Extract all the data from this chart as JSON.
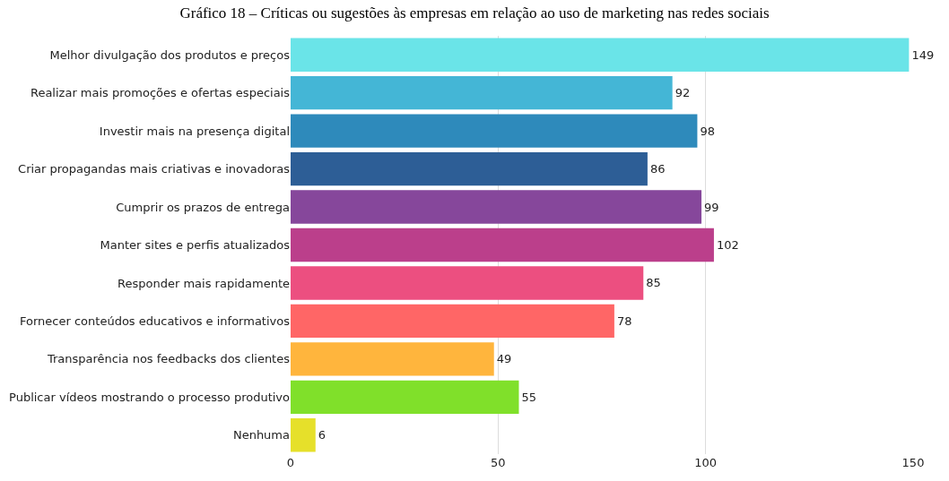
{
  "chart_data": {
    "type": "bar",
    "orientation": "horizontal",
    "title": "Gráfico 18 – Críticas ou sugestões às empresas em relação ao uso de marketing nas redes sociais",
    "categories": [
      "Melhor divulgação dos produtos e preços",
      "Realizar mais promoções e ofertas especiais",
      "Investir mais na presença digital",
      "Criar propagandas mais criativas e inovadoras",
      "Cumprir os prazos de entrega",
      "Manter sites e perfis atualizados",
      "Responder mais rapidamente",
      "Fornecer conteúdos educativos e informativos",
      "Transparência nos feedbacks dos clientes",
      "Publicar vídeos mostrando o processo produtivo",
      "Nenhuma"
    ],
    "values": [
      149,
      92,
      98,
      86,
      99,
      102,
      85,
      78,
      49,
      55,
      6
    ],
    "colors": [
      "#6ae4e8",
      "#44b6d6",
      "#2e8abb",
      "#2d5e96",
      "#86479b",
      "#bb3f8b",
      "#ec4f80",
      "#ff6666",
      "#ffb53d",
      "#80e02a",
      "#e6e02a"
    ],
    "xlim": [
      0,
      150
    ],
    "xticks": [
      0,
      50,
      100,
      150
    ],
    "grid": "x",
    "data_labels": true
  }
}
